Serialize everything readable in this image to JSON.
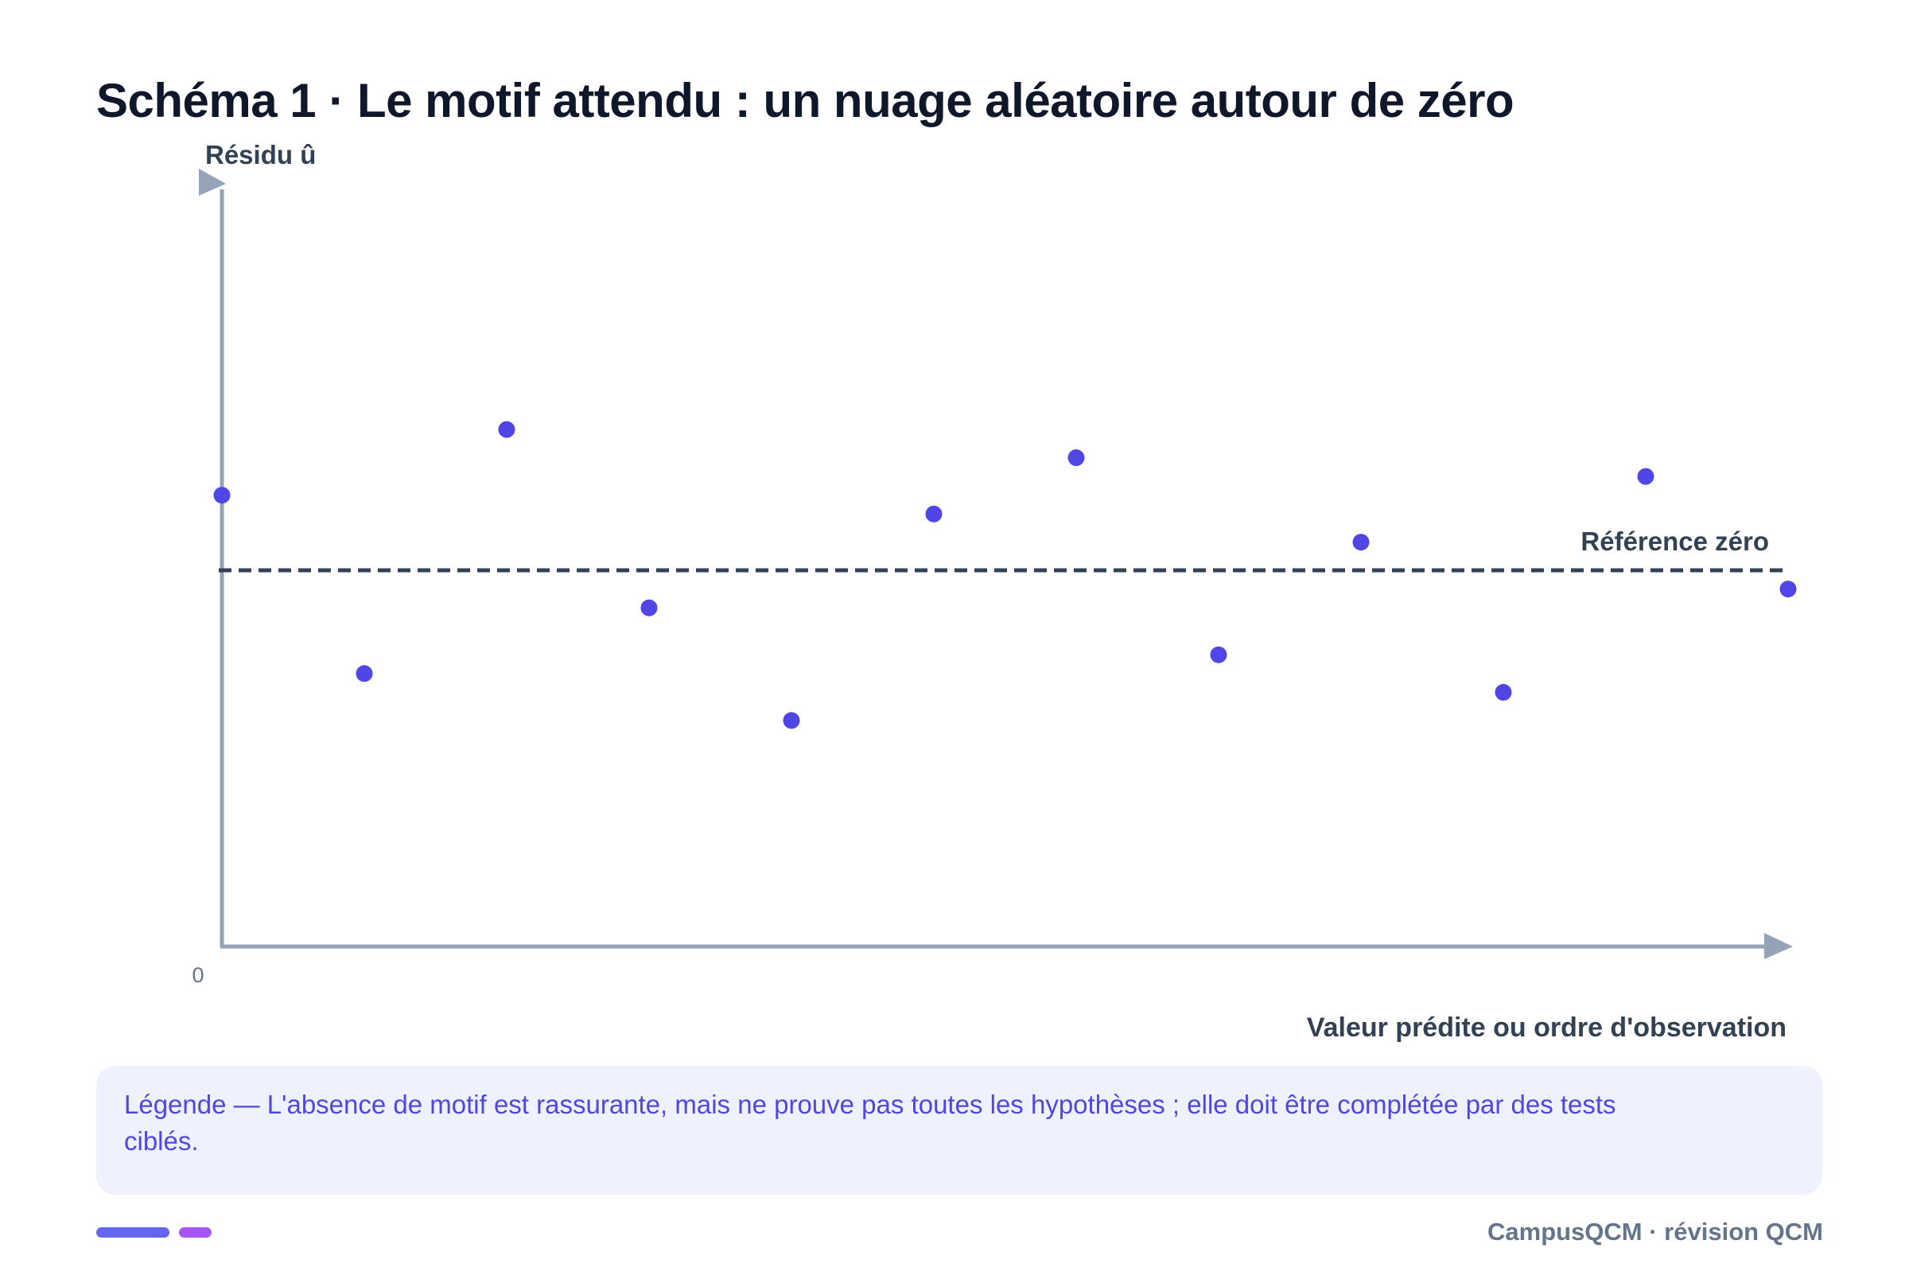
{
  "title": "Schéma 1 · Le motif attendu : un nuage aléatoire autour de zéro",
  "colors": {
    "points": "#4f46e5",
    "axes": "#94a3b8",
    "reference": "#334155",
    "title": "#0f172a",
    "legend_bg": "#eef2ff",
    "legend_text": "#4f46e5",
    "footer_text": "#64748b"
  },
  "chart_data": {
    "type": "scatter",
    "title": "Schéma 1 · Le motif attendu : un nuage aléatoire autour de zéro",
    "ylabel": "Résidu û",
    "xlabel": "Valeur prédite ou ordre d'observation",
    "origin_label": "0",
    "reference_line": {
      "label": "Référence zéro",
      "y": 0,
      "style": "dashed"
    },
    "grid": false,
    "legend": "none",
    "xlim": [
      0,
      11
    ],
    "ylim": [
      -8,
      8
    ],
    "series": [
      {
        "points": [
          {
            "x": 0,
            "y": 1.6
          },
          {
            "x": 1,
            "y": -2.2
          },
          {
            "x": 2,
            "y": 3.0
          },
          {
            "x": 3,
            "y": -0.8
          },
          {
            "x": 4,
            "y": -3.2
          },
          {
            "x": 5,
            "y": 1.2
          },
          {
            "x": 6,
            "y": 2.4
          },
          {
            "x": 7,
            "y": -1.8
          },
          {
            "x": 8,
            "y": 0.6
          },
          {
            "x": 9,
            "y": -2.6
          },
          {
            "x": 10,
            "y": 2.0
          },
          {
            "x": 11,
            "y": -0.4
          }
        ]
      }
    ]
  },
  "legend_box": {
    "text": "Légende — L'absence de motif est rassurante, mais ne prouve pas toutes les hypothèses ; elle doit être complétée par des tests ciblés."
  },
  "footer": {
    "brand": "CampusQCM · révision QCM"
  }
}
